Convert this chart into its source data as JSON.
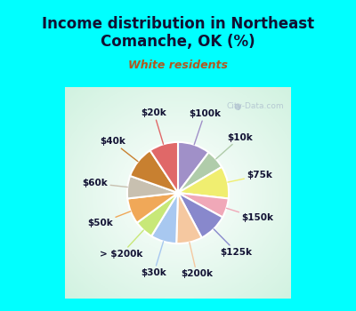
{
  "title": "Income distribution in Northeast\nComanche, OK (%)",
  "subtitle": "White residents",
  "title_color": "#111133",
  "subtitle_color": "#b05820",
  "background_cyan": "#00ffff",
  "watermark": "City-Data.com",
  "labels": [
    "$100k",
    "$10k",
    "$75k",
    "$150k",
    "$125k",
    "$200k",
    "$30k",
    "> $200k",
    "$50k",
    "$60k",
    "$40k",
    "$20k"
  ],
  "values": [
    10,
    6,
    10,
    6,
    9,
    8,
    8,
    6,
    8,
    7,
    10,
    9
  ],
  "colors": [
    "#a090c8",
    "#b0ccaa",
    "#f0ee70",
    "#f0a8b8",
    "#8888cc",
    "#f5c8a0",
    "#a8c8f0",
    "#c8e878",
    "#f0a858",
    "#c8c0b0",
    "#c88030",
    "#e06868"
  ],
  "label_fontsize": 7.5,
  "title_fontsize": 12
}
